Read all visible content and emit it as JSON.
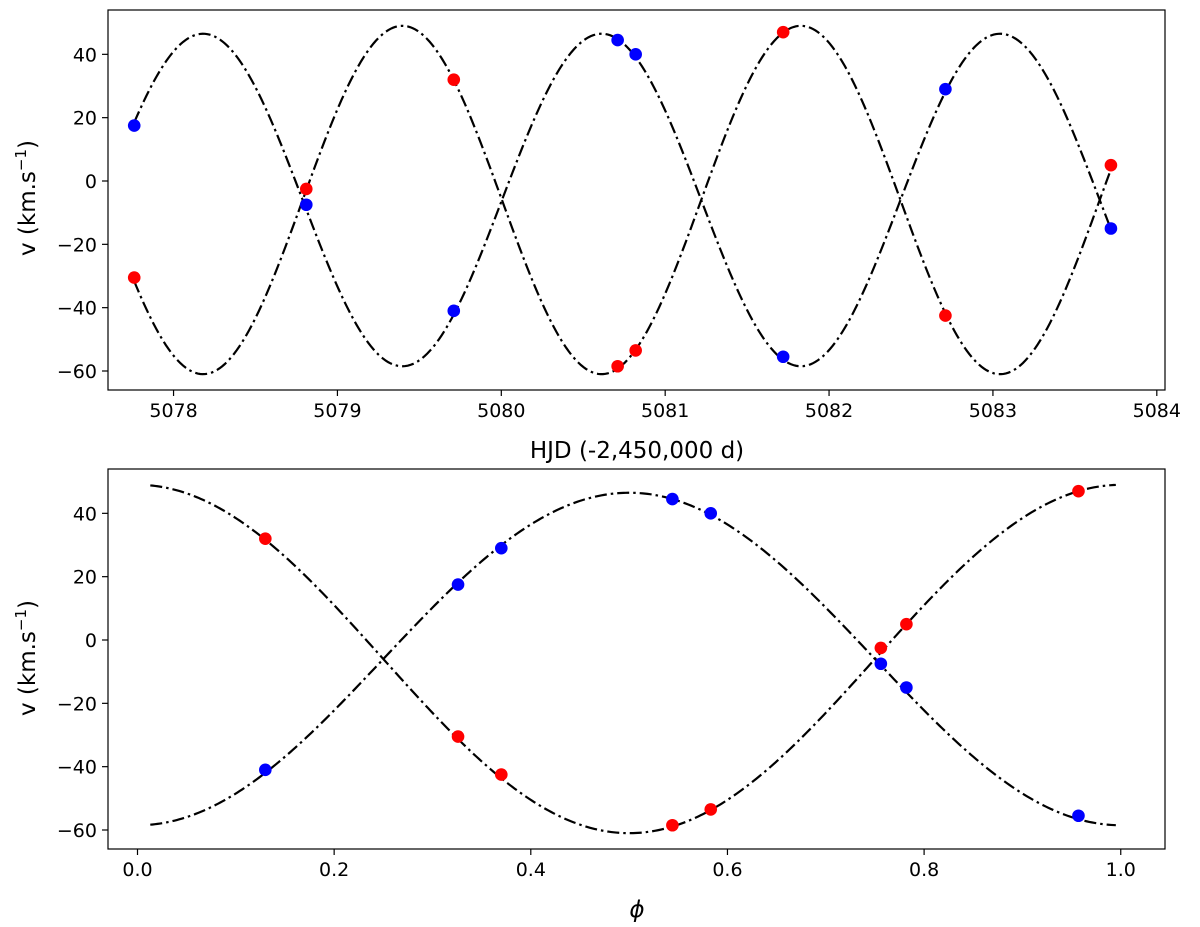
{
  "colors": {
    "primary": "#0000ff",
    "secondary": "#ff0000",
    "curve": "#000000"
  },
  "chart_data": [
    {
      "type": "scatter",
      "xlabel": "HJD (-2,450,000 d)",
      "ylabel": "v (km.s",
      "ylabel_sup": "−1",
      "ylabel_close": ")",
      "xlim": [
        5077.6,
        5084.05
      ],
      "ylim": [
        -66,
        54
      ],
      "xticks": [
        5078,
        5079,
        5080,
        5081,
        5082,
        5083,
        5084
      ],
      "yticks": [
        -60,
        -40,
        -20,
        0,
        20,
        40
      ],
      "grid": false,
      "model": {
        "primary": {
          "gamma": -6.0,
          "K": 52.5,
          "P": 2.4318,
          "t_max": 5080.612
        },
        "secondary": {
          "gamma": -6.0,
          "K": 55.0,
          "P": 2.4318,
          "t_max": 5079.396
        },
        "x_range": [
          5077.76,
          5083.72
        ]
      },
      "series": [
        {
          "color": "#0000ff",
          "points": [
            [
              5077.76,
              17.5
            ],
            [
              5078.81,
              -7.5
            ],
            [
              5079.71,
              -41.0
            ],
            [
              5080.71,
              44.5
            ],
            [
              5080.82,
              40.0
            ],
            [
              5081.72,
              -55.5
            ],
            [
              5082.71,
              29.0
            ],
            [
              5083.72,
              -15.0
            ]
          ]
        },
        {
          "color": "#ff0000",
          "points": [
            [
              5077.76,
              -30.5
            ],
            [
              5078.81,
              -2.5
            ],
            [
              5079.71,
              32.0
            ],
            [
              5080.71,
              -58.5
            ],
            [
              5080.82,
              -53.5
            ],
            [
              5081.72,
              47.0
            ],
            [
              5082.71,
              -42.5
            ],
            [
              5083.72,
              5.0
            ]
          ]
        }
      ]
    },
    {
      "type": "scatter",
      "xlabel": "ϕ",
      "ylabel": "v (km.s",
      "ylabel_sup": "−1",
      "ylabel_close": ")",
      "xlim": [
        -0.03,
        1.045
      ],
      "ylim": [
        -66,
        54
      ],
      "xticks": [
        0.0,
        0.2,
        0.4,
        0.6,
        0.8,
        1.0
      ],
      "xtick_labels": [
        "0.0",
        "0.2",
        "0.4",
        "0.6",
        "0.8",
        "1.0"
      ],
      "yticks": [
        -60,
        -40,
        -20,
        0,
        20,
        40
      ],
      "grid": false,
      "model": {
        "primary": {
          "gamma": -6.0,
          "K": 52.5,
          "phase_max": 0.5
        },
        "secondary": {
          "gamma": -6.0,
          "K": 55.0,
          "phase_max": 0.0
        },
        "x_range": [
          0.013,
          0.995
        ]
      },
      "series": [
        {
          "color": "#0000ff",
          "points": [
            [
              0.13,
              -41.0
            ],
            [
              0.326,
              17.5
            ],
            [
              0.37,
              29.0
            ],
            [
              0.544,
              44.5
            ],
            [
              0.583,
              40.0
            ],
            [
              0.756,
              -7.5
            ],
            [
              0.782,
              -15.0
            ],
            [
              0.957,
              -55.5
            ]
          ]
        },
        {
          "color": "#ff0000",
          "points": [
            [
              0.13,
              32.0
            ],
            [
              0.326,
              -30.5
            ],
            [
              0.37,
              -42.5
            ],
            [
              0.544,
              -58.5
            ],
            [
              0.583,
              -53.5
            ],
            [
              0.756,
              -2.5
            ],
            [
              0.782,
              5.0
            ],
            [
              0.957,
              47.0
            ]
          ]
        }
      ]
    }
  ]
}
